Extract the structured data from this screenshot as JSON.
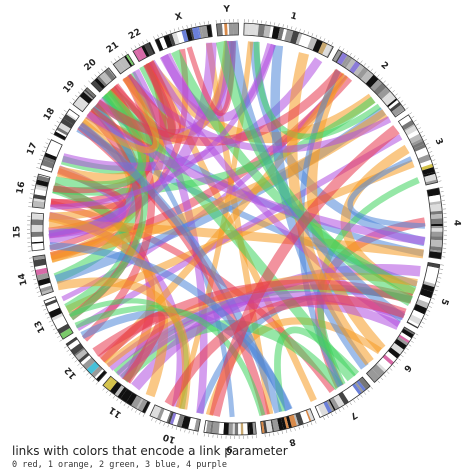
{
  "chromosomes": [
    "1",
    "2",
    "3",
    "4",
    "5",
    "6",
    "7",
    "8",
    "9",
    "10",
    "11",
    "12",
    "13",
    "14",
    "15",
    "16",
    "17",
    "18",
    "19",
    "20",
    "21",
    "22",
    "X",
    "Y"
  ],
  "caption": {
    "title": "links with colors that encode a link parameter",
    "legend": "0 red, 1 orange, 2 green, 3 blue, 4 purple"
  }
}
